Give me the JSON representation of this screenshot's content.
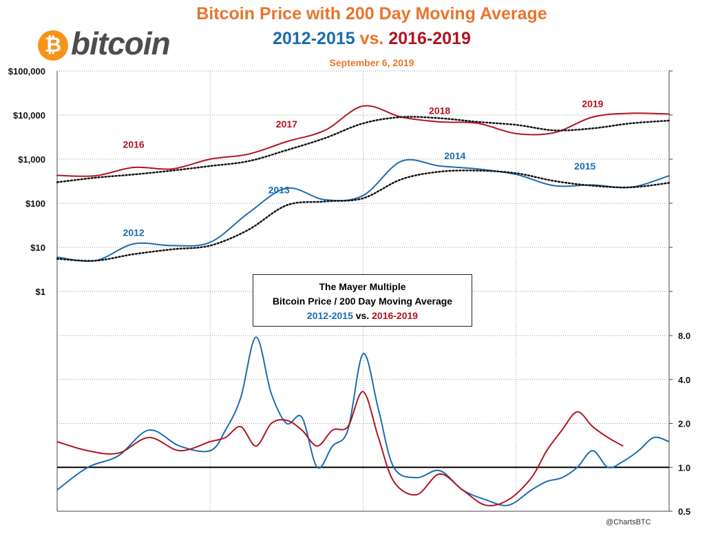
{
  "header": {
    "title": "Bitcoin Price with 200 Day Moving Average",
    "subtitle_a": "2012-2015",
    "subtitle_vs": "vs.",
    "subtitle_b": "2016-2019",
    "date": "September 6, 2019"
  },
  "logo": {
    "symbol": "₿",
    "word": "bitcoin"
  },
  "credit": "@ChartsBTC",
  "legend_box": {
    "line1": "The Mayer Multiple",
    "line2": "Bitcoin Price / 200 Day Moving Average",
    "a": "2012-2015",
    "vs": "vs.",
    "b": "2016-2019"
  },
  "colors": {
    "title": "#e8742b",
    "series_2012_2015": "#1a6bb0",
    "series_2016_2019": "#b01420",
    "ma": "#111111"
  },
  "chart_data": [
    {
      "type": "line",
      "panel": "price",
      "y_scale": "log",
      "ylim": [
        1,
        100000
      ],
      "y_ticks": [
        "$1",
        "$10",
        "$100",
        "$1,000",
        "$10,000",
        "$100,000"
      ],
      "grid": true,
      "x": [
        0,
        0.25,
        0.5,
        0.75,
        1.0,
        1.25,
        1.5,
        1.75,
        2.0,
        2.25,
        2.5,
        2.75,
        3.0,
        3.25,
        3.5,
        3.75,
        4.0
      ],
      "series": [
        {
          "name": "2012-2015",
          "color": "#1a6bb0",
          "values": [
            6,
            5,
            12,
            11,
            13,
            60,
            220,
            120,
            150,
            900,
            700,
            600,
            450,
            250,
            260,
            230,
            420
          ]
        },
        {
          "name": "2012-2015 200 day MA",
          "style": "dotted",
          "values": [
            5.5,
            5,
            7,
            9,
            11,
            25,
            90,
            110,
            130,
            350,
            520,
            550,
            480,
            320,
            250,
            230,
            290
          ]
        },
        {
          "name": "2016-2019",
          "color": "#b01420",
          "values": [
            430,
            420,
            650,
            600,
            1000,
            1300,
            2500,
            4500,
            16000,
            9000,
            7000,
            6500,
            3800,
            4000,
            9000,
            11000,
            10500
          ]
        },
        {
          "name": "2016-2019 200 day MA",
          "style": "dotted",
          "values": [
            300,
            380,
            450,
            550,
            700,
            900,
            1600,
            3000,
            6500,
            9000,
            8500,
            7000,
            6000,
            4500,
            5000,
            6500,
            7500
          ]
        }
      ],
      "annotations": [
        {
          "text": "2012",
          "x": 0.5,
          "y": 18,
          "series": "2012-2015"
        },
        {
          "text": "2013",
          "x": 1.45,
          "y": 170,
          "series": "2012-2015"
        },
        {
          "text": "2014",
          "x": 2.6,
          "y": 1000,
          "series": "2012-2015"
        },
        {
          "text": "2015",
          "x": 3.45,
          "y": 580,
          "series": "2012-2015"
        },
        {
          "text": "2016",
          "x": 0.5,
          "y": 1800,
          "series": "2016-2019"
        },
        {
          "text": "2017",
          "x": 1.5,
          "y": 5200,
          "series": "2016-2019"
        },
        {
          "text": "2018",
          "x": 2.5,
          "y": 10500,
          "series": "2016-2019"
        },
        {
          "text": "2019",
          "x": 3.5,
          "y": 15000,
          "series": "2016-2019"
        }
      ]
    },
    {
      "type": "line",
      "panel": "mayer_multiple",
      "y_scale": "log",
      "ylim": [
        0.5,
        8.0
      ],
      "y_ticks": [
        "0.5",
        "1.0",
        "2.0",
        "4.0",
        "8.0"
      ],
      "reference_line": 1.0,
      "x": [
        0,
        0.2,
        0.4,
        0.6,
        0.8,
        1.0,
        1.1,
        1.2,
        1.3,
        1.4,
        1.5,
        1.6,
        1.7,
        1.8,
        1.9,
        2.0,
        2.1,
        2.2,
        2.35,
        2.5,
        2.65,
        2.8,
        2.95,
        3.1,
        3.2,
        3.3,
        3.4,
        3.5,
        3.6,
        3.7,
        3.8,
        3.9,
        4.0
      ],
      "series": [
        {
          "name": "2012-2015",
          "color": "#1a6bb0",
          "values": [
            0.7,
            1.0,
            1.2,
            1.8,
            1.4,
            1.3,
            1.8,
            3.0,
            7.8,
            3.2,
            2.0,
            2.2,
            1.0,
            1.4,
            1.8,
            6.0,
            2.5,
            1.0,
            0.85,
            0.95,
            0.7,
            0.6,
            0.55,
            0.7,
            0.8,
            0.85,
            1.0,
            1.3,
            1.0,
            1.1,
            1.3,
            1.6,
            1.5
          ]
        },
        {
          "name": "2016-2019",
          "color": "#b01420",
          "values": [
            1.5,
            1.3,
            1.25,
            1.6,
            1.3,
            1.5,
            1.6,
            1.9,
            1.4,
            2.0,
            2.1,
            1.8,
            1.4,
            1.8,
            1.9,
            3.3,
            1.6,
            0.8,
            0.65,
            0.9,
            0.7,
            0.55,
            0.6,
            0.85,
            1.3,
            1.8,
            2.4,
            1.9,
            1.6,
            1.4,
            null,
            null,
            null
          ]
        }
      ]
    }
  ]
}
